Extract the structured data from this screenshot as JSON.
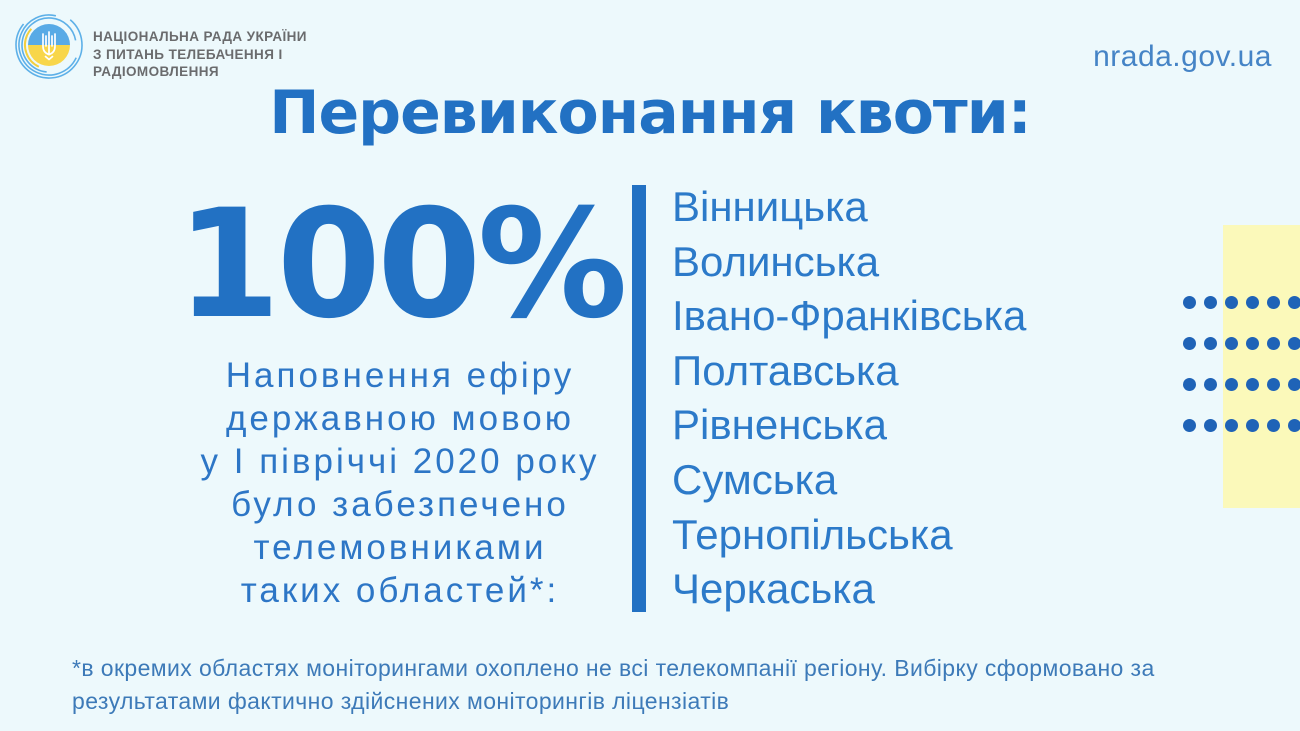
{
  "header": {
    "org_name_lines": [
      "НАЦІОНАЛЬНА РАДА УКРАЇНИ",
      "З ПИТАНЬ ТЕЛЕБАЧЕННЯ І",
      "РАДІОМОВЛЕННЯ"
    ],
    "website": "nrada.gov.ua"
  },
  "title": "Перевиконання квоти:",
  "stat": {
    "value": "100%",
    "description_lines": [
      "Наповнення ефіру",
      "державною мовою",
      "у І півріччі 2020 року",
      "було забезпечено",
      "телемовниками",
      "таких областей*:"
    ]
  },
  "regions": [
    "Вінницька",
    "Волинська",
    "Івано-Франківська",
    "Полтавська",
    "Рівненська",
    "Сумська",
    "Тернопільська",
    "Черкаська"
  ],
  "footnote": "*в окремих областях моніторингами охоплено не всі телекомпанії регіону. Вибірку сформовано за результатами фактично здійснених моніторингів ліцензіатів",
  "icons": {
    "logo": "trident-emblem-icon"
  },
  "colors": {
    "background": "#edf9fc",
    "accent_blue": "#2271c3",
    "regions_blue": "#2c7ac9",
    "description_blue": "#2d76c6",
    "footnote_blue": "#3d7ab8",
    "website_blue": "#4584c6",
    "dot_blue": "#1f63b7",
    "pale_yellow": "#fbf9ba",
    "org_text_gray": "#6a6b6d",
    "flag_blue": "#58aae6",
    "flag_yellow": "#f8d64a"
  },
  "decor": {
    "dot_rows": 4,
    "dot_cols": 6
  }
}
